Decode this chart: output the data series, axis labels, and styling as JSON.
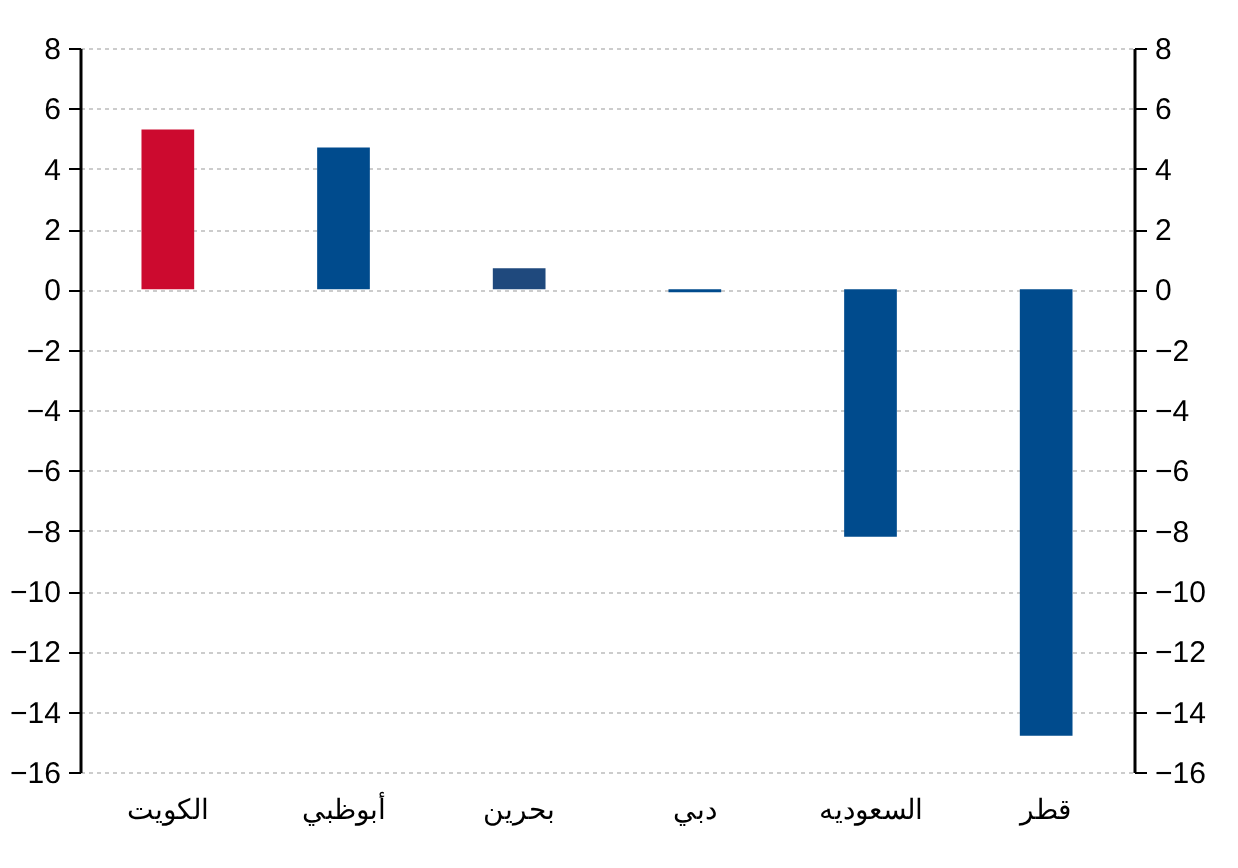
{
  "chart_data": {
    "type": "bar",
    "categories": [
      "الكويت",
      "أبوظبي",
      "بحرين",
      "دبي",
      "السعوديه",
      "قطر"
    ],
    "values": [
      5.3,
      4.7,
      0.7,
      -0.1,
      -8.2,
      -14.8
    ],
    "colors": [
      "#cc0a2f",
      "#004b8d",
      "#1f497d",
      "#004b8d",
      "#004b8d",
      "#004b8d"
    ],
    "ylim": [
      -16,
      8
    ],
    "yticks": [
      -16,
      -14,
      -12,
      -10,
      -8,
      -6,
      -4,
      -2,
      0,
      2,
      4,
      6,
      8
    ],
    "y2lim": [
      -16,
      8
    ],
    "y2ticks": [
      -16,
      -14,
      -12,
      -10,
      -8,
      -6,
      -4,
      -2,
      0,
      2,
      4,
      6,
      8
    ],
    "grid": "y"
  }
}
